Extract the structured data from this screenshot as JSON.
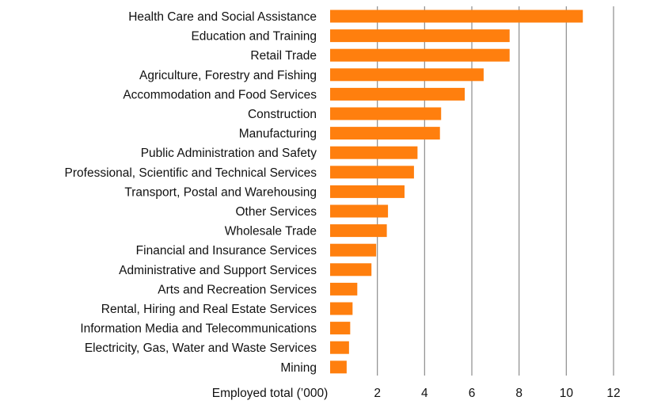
{
  "chart_data": {
    "type": "bar",
    "orientation": "horizontal",
    "categories": [
      "Health Care and Social Assistance",
      "Education and Training",
      "Retail Trade",
      "Agriculture, Forestry and Fishing",
      "Accommodation and Food Services",
      "Construction",
      "Manufacturing",
      "Public Administration and Safety",
      "Professional, Scientific and Technical Services",
      "Transport, Postal and Warehousing",
      "Other Services",
      "Wholesale Trade",
      "Financial and Insurance Services",
      "Administrative and Support Services",
      "Arts and Recreation Services",
      "Rental, Hiring and Real Estate Services",
      "Information Media and Telecommunications",
      "Electricity, Gas, Water and Waste Services",
      "Mining"
    ],
    "values": [
      10.7,
      7.6,
      7.6,
      6.5,
      5.7,
      4.7,
      4.65,
      3.7,
      3.55,
      3.15,
      2.45,
      2.4,
      1.95,
      1.75,
      1.15,
      0.95,
      0.85,
      0.8,
      0.7
    ],
    "xlabel": "Employed total (’000)",
    "xlim": [
      0,
      12
    ],
    "xticks": [
      "2",
      "4",
      "6",
      "8",
      "10",
      "12"
    ],
    "grid": "vertical",
    "legend": "none",
    "colors": {
      "bar": "#FF7F0E",
      "grid": "#8C8C8C",
      "text": "#111111"
    }
  }
}
